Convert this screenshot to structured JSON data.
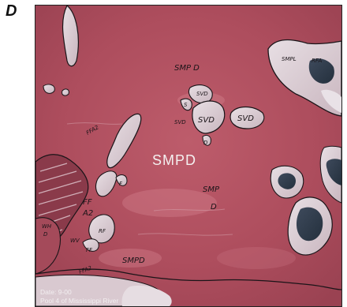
{
  "panel_letter": "D",
  "map": {
    "center_label": "SMPD",
    "handwritten_labels": {
      "smp_d_top": "SMP D",
      "smpl": "SMPL",
      "rfa": "RFA",
      "svd_left": "SVD",
      "svd_right": "SVD",
      "svd_small": "SVD",
      "svd_tiny": "SVD",
      "s_mark": "S",
      "smp_right": "SMP",
      "d_right": "D",
      "ffa2_top": "FFA2",
      "ff": "FF",
      "a2": "A2",
      "wh": "WH",
      "d_left": "D",
      "ffa2_bottom": "FFA2",
      "smpd_bottom": "SMPD",
      "wv": "WV",
      "ff_small": "FF",
      "f_small": "F",
      "rf": "RF",
      "d_mid": "D"
    },
    "caption_date": "Date: 9-00",
    "caption_place": "Pool 4 of Mississippi River"
  },
  "colors": {
    "base_field": "#b0505f",
    "water": "#2e3a4a",
    "outline": "#1a1418"
  }
}
